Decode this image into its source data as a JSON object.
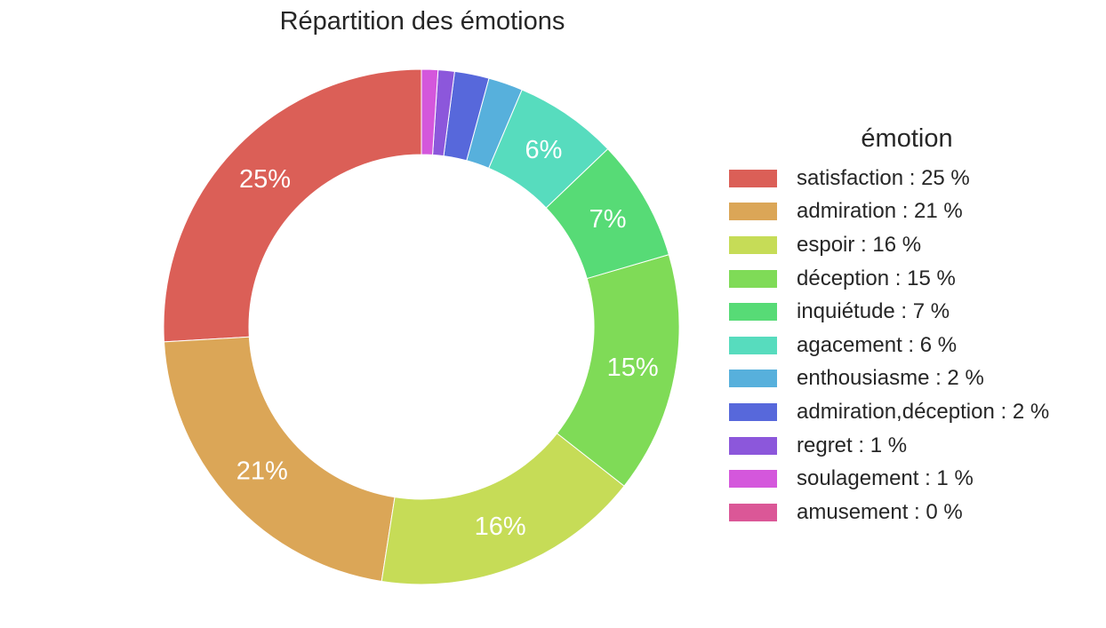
{
  "chart_data": {
    "type": "pie",
    "title": "Répartition des émotions",
    "legend_title": "émotion",
    "legend_position": "right",
    "donut": true,
    "start_angle_deg": 90,
    "direction": "counterclockwise",
    "slices": [
      {
        "label": "satisfaction : 25 %",
        "value": 25.2,
        "pct_label": "25%",
        "color": "#db5f57"
      },
      {
        "label": "admiration : 21 %",
        "value": 21.0,
        "pct_label": "21%",
        "color": "#dba657"
      },
      {
        "label": "espoir : 16 %",
        "value": 16.4,
        "pct_label": "16%",
        "color": "#c6dc57"
      },
      {
        "label": "déception : 15 %",
        "value": 14.7,
        "pct_label": "15%",
        "color": "#7fdb57"
      },
      {
        "label": "inquiétude : 7 %",
        "value": 7.4,
        "pct_label": "7%",
        "color": "#57db76"
      },
      {
        "label": "agacement : 6 %",
        "value": 6.3,
        "pct_label": "6%",
        "color": "#57dcbe"
      },
      {
        "label": "enthousiasme : 2 %",
        "value": 2.1,
        "pct_label": "",
        "color": "#57b0dc"
      },
      {
        "label": "admiration,déception : 2 %",
        "value": 2.1,
        "pct_label": "",
        "color": "#5768db"
      },
      {
        "label": "regret : 1 %",
        "value": 1.0,
        "pct_label": "",
        "color": "#8c57db"
      },
      {
        "label": "soulagement : 1 %",
        "value": 1.0,
        "pct_label": "",
        "color": "#d457dc"
      },
      {
        "label": "amusement : 0 %",
        "value": 0.0,
        "pct_label": "",
        "color": "#db5797"
      }
    ]
  }
}
